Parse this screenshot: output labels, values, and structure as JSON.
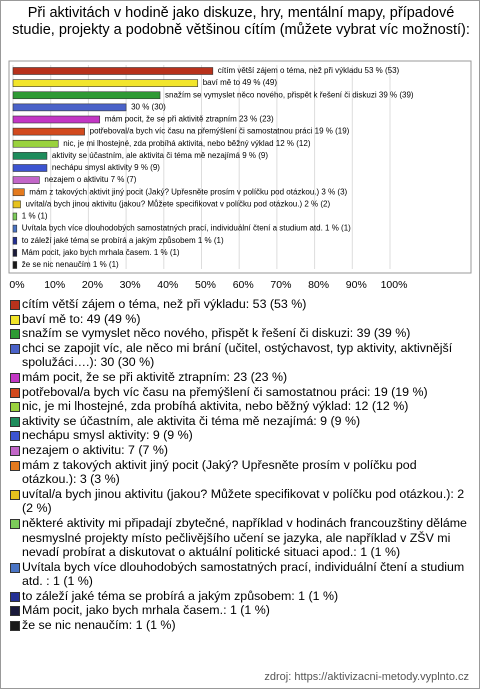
{
  "chart_data": {
    "type": "bar",
    "orientation": "horizontal",
    "title": "Při aktivitách v hodině jako diskuze, hry, mentální mapy, případové studie, projekty a podobně většinou cítím (můžete vybrat víc možností):",
    "categories": [
      "cítím větší zájem o téma, než při výkladu: 53 (53 %)",
      "baví mě to: 49 (49 %)",
      "snažím se vymyslet něco nového, přispět k řešení či diskuzi: 39 (39 %)",
      "chci se zapojit víc, ale něco mi brání (učitel, ostýchavost, typ aktivity, aktivnější spolužáci….): 30 (30 %)",
      "mám pocit, že se při aktivitě ztrapním: 23 (23 %)",
      "potřeboval/a bych víc času na přemýšlení či samostatnou práci: 19 (19 %)",
      "nic, je mi lhostejné, zda probíhá aktivita, nebo běžný výklad: 12 (12 %)",
      "aktivity se účastním, ale aktivita či téma mě nezajímá: 9 (9 %)",
      "nechápu smysl aktivity: 9 (9 %)",
      "nezajem o aktivitu: 7 (7 %)",
      "mám z takových aktivit jiný pocit (Jaký? Upřesněte prosím v políčku pod otázkou.): 3 (3 %)",
      "uvítal/a bych jinou aktivitu (jakou? Můžete specifikovat v políčku pod otázkou.): 2 (2 %)",
      "některé aktivity mi připadají zbytečné, například v hodinách francouzštiny děláme nesmyslné projekty místo pečlivějšího učení se jazyka, ale například v ZŠV mi nevadí probírat a diskutovat o aktuální politické situaci apod.: 1 (1 %)",
      "Uvítala bych více dlouhodobých samostatných prací, individuální čtení a studium atd. : 1 (1 %)",
      "to záleží jaké téma se probírá a jakým způsobem: 1 (1 %)",
      "Mám pocit, jako bych mrhala časem.: 1 (1 %)",
      "že se nic nenaučím: 1 (1 %)"
    ],
    "values": [
      53,
      49,
      39,
      30,
      23,
      19,
      12,
      9,
      9,
      7,
      3,
      2,
      1,
      1,
      1,
      1,
      1
    ],
    "value_labels": [
      "cítím větší zájem o téma, než při výkladu 53 % (53)",
      "baví mě to 49 % (49)",
      "snažím se vymyslet něco nového, přispět k řešení či diskuzi 39 % (39)",
      "30 % (30)",
      "mám pocit, že se při aktivitě ztrapním 23 % (23)",
      "potřeboval/a bych víc času na přemýšlení či samostatnou práci 19 % (19)",
      "nic, je mi lhostejné, zda probíhá aktivita, nebo běžný výklad 12 % (12)",
      "aktivity se účastním, ale aktivita či téma mě nezajímá 9 % (9)",
      "nechápu smysl aktivity 9 % (9)",
      "nezajem o aktivitu 7 % (7)",
      "mám z takových aktivit jiný pocit (Jaký? Upřesněte prosím v políčku pod otázkou.) 3 % (3)",
      "uvítal/a bych jinou aktivitu (jakou? Můžete specifikovat v políčku pod otázkou.) 2 % (2)",
      "1 % (1)",
      "Uvítala bych více dlouhodobých samostatných prací, individuální čtení a studium atd. 1 % (1)",
      "to záleží jaké téma se probírá a jakým způsobem 1 % (1)",
      "Mám pocit, jako bych mrhala časem. 1 % (1)",
      "že se nic nenaučím 1 % (1)"
    ],
    "colors": [
      "#b8321c",
      "#f2e52a",
      "#2e9a34",
      "#4a62c8",
      "#c236c4",
      "#d24a1e",
      "#9ad23e",
      "#1e8c5c",
      "#3c54d0",
      "#c266c8",
      "#e47a1e",
      "#e6c21e",
      "#7ccc5a",
      "#4a74c4",
      "#243094",
      "#1a1a3a",
      "#1a1a1a"
    ],
    "xlim": [
      0,
      100
    ],
    "xticks": [
      {
        "value": 0,
        "label": "0%"
      },
      {
        "value": 10,
        "label": "10%"
      },
      {
        "value": 20,
        "label": "20%"
      },
      {
        "value": 30,
        "label": "30%"
      },
      {
        "value": 40,
        "label": "40%"
      },
      {
        "value": 50,
        "label": "50%"
      },
      {
        "value": 60,
        "label": "60%"
      },
      {
        "value": 70,
        "label": "70%"
      },
      {
        "value": 80,
        "label": "80%"
      },
      {
        "value": 90,
        "label": "90%"
      },
      {
        "value": 100,
        "label": "100%"
      }
    ],
    "grid": true,
    "source": "zdroj: https://aktivizacni-metody.vyplnto.cz"
  }
}
